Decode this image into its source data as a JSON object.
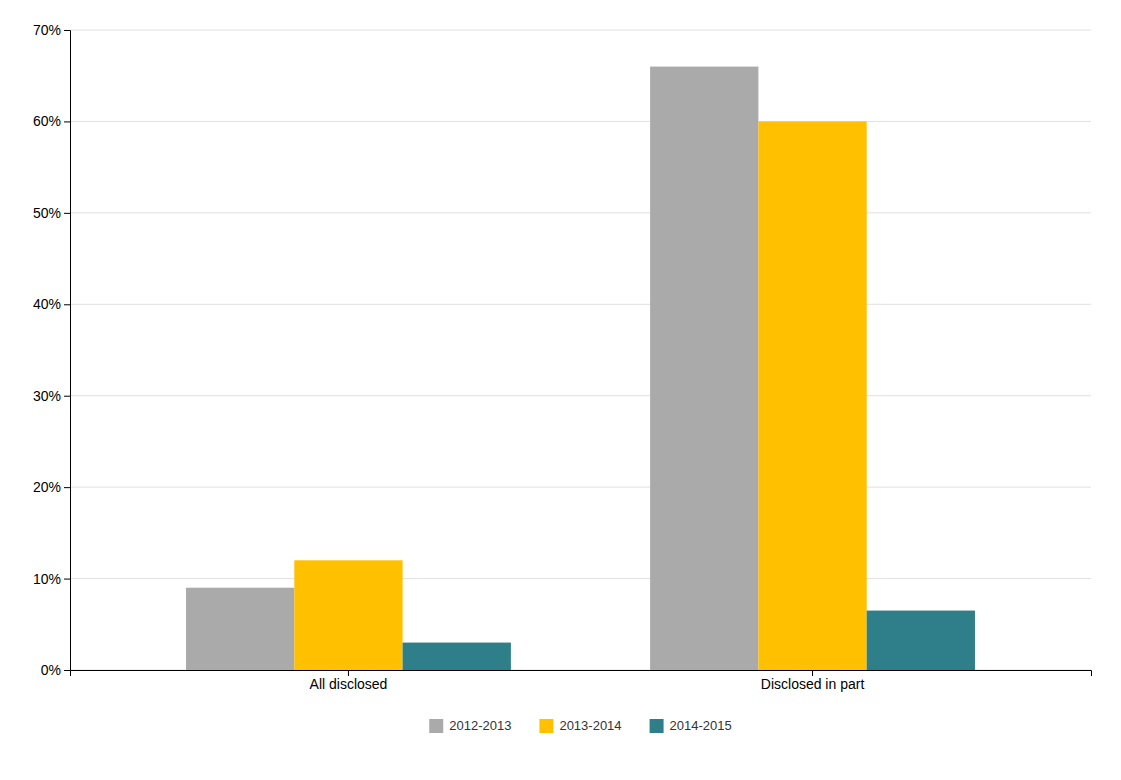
{
  "chart_data": {
    "type": "bar",
    "categories": [
      "All disclosed",
      "Disclosed in part"
    ],
    "series": [
      {
        "name": "2012-2013",
        "values": [
          0.09,
          0.66
        ],
        "color": "#AAAAAA"
      },
      {
        "name": "2013-2014",
        "values": [
          0.12,
          0.6
        ],
        "color": "#FFC000"
      },
      {
        "name": "2014-2015",
        "values": [
          0.03,
          0.065
        ],
        "color": "#2E7F8A"
      }
    ],
    "ylim": [
      0,
      0.7
    ],
    "yticks": [
      {
        "value": 0.0,
        "label": "0%"
      },
      {
        "value": 0.1,
        "label": "10%"
      },
      {
        "value": 0.2,
        "label": "20%"
      },
      {
        "value": 0.3,
        "label": "30%"
      },
      {
        "value": 0.4,
        "label": "40%"
      },
      {
        "value": 0.5,
        "label": "50%"
      },
      {
        "value": 0.6,
        "label": "60%"
      },
      {
        "value": 0.7,
        "label": "70%"
      }
    ],
    "grid": true,
    "legend": "bottom"
  }
}
